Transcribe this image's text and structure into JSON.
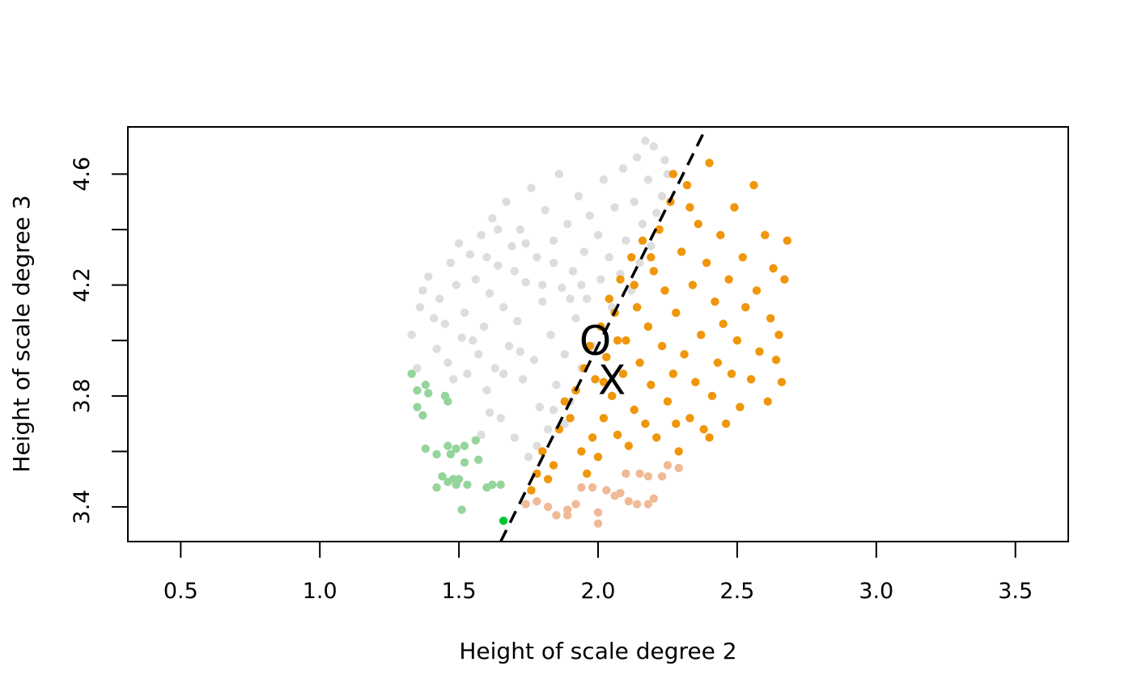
{
  "chart_data": {
    "type": "scatter",
    "xlabel": "Height of scale degree 2",
    "ylabel": "Height of scale degree 3",
    "xlim": [
      0.31,
      3.69
    ],
    "ylim": [
      3.275,
      4.77
    ],
    "xticks": [
      "0.5",
      "1.0",
      "1.5",
      "2.0",
      "2.5",
      "3.0",
      "3.5"
    ],
    "yticks": [
      "3.4",
      "3.8",
      "4.2",
      "4.6"
    ],
    "grid": false,
    "legend": "none",
    "dashed_line": {
      "x": [
        1.65,
        2.38
      ],
      "y": [
        3.275,
        4.75
      ]
    },
    "markers": [
      {
        "label": "O",
        "x": 1.99,
        "y": 4.0
      },
      {
        "label": "X",
        "x": 2.05,
        "y": 3.86
      }
    ],
    "series": [
      {
        "color": "#dddddd",
        "points": [
          [
            1.33,
            4.02
          ],
          [
            1.36,
            4.12
          ],
          [
            1.37,
            4.18
          ],
          [
            1.39,
            4.23
          ],
          [
            1.42,
            3.97
          ],
          [
            1.43,
            4.15
          ],
          [
            1.45,
            4.06
          ],
          [
            1.46,
            3.92
          ],
          [
            1.47,
            4.28
          ],
          [
            1.49,
            4.2
          ],
          [
            1.51,
            4.01
          ],
          [
            1.52,
            4.1
          ],
          [
            1.53,
            3.88
          ],
          [
            1.54,
            4.31
          ],
          [
            1.56,
            4.22
          ],
          [
            1.57,
            3.95
          ],
          [
            1.58,
            4.38
          ],
          [
            1.59,
            4.05
          ],
          [
            1.6,
            3.82
          ],
          [
            1.61,
            4.17
          ],
          [
            1.62,
            4.44
          ],
          [
            1.63,
            3.9
          ],
          [
            1.64,
            4.27
          ],
          [
            1.65,
            3.72
          ],
          [
            1.66,
            4.12
          ],
          [
            1.67,
            4.5
          ],
          [
            1.68,
            3.98
          ],
          [
            1.69,
            4.34
          ],
          [
            1.7,
            3.65
          ],
          [
            1.71,
            4.07
          ],
          [
            1.72,
            4.4
          ],
          [
            1.73,
            3.86
          ],
          [
            1.74,
            4.21
          ],
          [
            1.75,
            3.58
          ],
          [
            1.76,
            4.55
          ],
          [
            1.77,
            3.93
          ],
          [
            1.78,
            4.3
          ],
          [
            1.79,
            3.76
          ],
          [
            1.8,
            4.14
          ],
          [
            1.81,
            4.47
          ],
          [
            1.82,
            3.68
          ],
          [
            1.83,
            4.02
          ],
          [
            1.84,
            4.36
          ],
          [
            1.85,
            3.84
          ],
          [
            1.86,
            4.6
          ],
          [
            1.87,
            4.19
          ],
          [
            1.88,
            3.95
          ],
          [
            1.89,
            4.42
          ],
          [
            1.9,
            3.78
          ],
          [
            1.91,
            4.25
          ],
          [
            1.92,
            4.08
          ],
          [
            1.93,
            4.52
          ],
          [
            1.94,
            3.9
          ],
          [
            1.95,
            4.32
          ],
          [
            1.96,
            4.15
          ],
          [
            1.97,
            4.45
          ],
          [
            1.98,
            3.98
          ],
          [
            2.0,
            4.38
          ],
          [
            2.01,
            4.22
          ],
          [
            2.02,
            4.58
          ],
          [
            2.04,
            4.3
          ],
          [
            2.05,
            4.12
          ],
          [
            2.06,
            4.48
          ],
          [
            2.08,
            4.24
          ],
          [
            2.09,
            4.62
          ],
          [
            2.1,
            4.36
          ],
          [
            2.12,
            4.18
          ],
          [
            2.13,
            4.5
          ],
          [
            2.14,
            4.66
          ],
          [
            2.15,
            4.28
          ],
          [
            2.16,
            4.42
          ],
          [
            2.17,
            4.72
          ],
          [
            2.18,
            4.58
          ],
          [
            2.19,
            4.34
          ],
          [
            2.2,
            4.7
          ],
          [
            2.21,
            4.46
          ],
          [
            2.23,
            4.52
          ],
          [
            2.24,
            4.65
          ],
          [
            2.25,
            4.6
          ],
          [
            1.35,
            3.9
          ],
          [
            1.41,
            4.08
          ],
          [
            1.48,
            3.86
          ],
          [
            1.55,
            4.0
          ],
          [
            1.61,
            3.74
          ],
          [
            1.66,
            3.88
          ],
          [
            1.72,
            3.96
          ],
          [
            1.78,
            3.62
          ],
          [
            1.84,
            3.75
          ],
          [
            1.88,
            3.7
          ],
          [
            1.92,
            3.82
          ],
          [
            1.5,
            4.35
          ],
          [
            1.6,
            4.3
          ],
          [
            1.7,
            4.25
          ],
          [
            1.8,
            4.2
          ],
          [
            1.9,
            4.15
          ],
          [
            1.64,
            4.4
          ],
          [
            1.74,
            4.35
          ],
          [
            1.84,
            4.28
          ],
          [
            1.94,
            4.2
          ],
          [
            1.58,
            3.66
          ]
        ]
      },
      {
        "color": "#f0960a",
        "points": [
          [
            1.76,
            3.46
          ],
          [
            1.78,
            3.52
          ],
          [
            1.8,
            3.6
          ],
          [
            1.82,
            3.5
          ],
          [
            1.84,
            3.55
          ],
          [
            1.86,
            3.68
          ],
          [
            1.88,
            3.78
          ],
          [
            1.9,
            3.72
          ],
          [
            1.92,
            3.82
          ],
          [
            1.94,
            3.6
          ],
          [
            1.95,
            3.9
          ],
          [
            1.96,
            3.52
          ],
          [
            1.97,
            3.98
          ],
          [
            1.98,
            3.65
          ],
          [
            1.99,
            3.86
          ],
          [
            2.0,
            3.58
          ],
          [
            2.01,
            4.05
          ],
          [
            2.02,
            3.72
          ],
          [
            2.03,
            3.94
          ],
          [
            2.04,
            4.15
          ],
          [
            2.05,
            3.8
          ],
          [
            2.06,
            4.1
          ],
          [
            2.07,
            3.66
          ],
          [
            2.08,
            4.22
          ],
          [
            2.09,
            3.88
          ],
          [
            2.1,
            4.0
          ],
          [
            2.11,
            3.62
          ],
          [
            2.12,
            4.3
          ],
          [
            2.13,
            3.75
          ],
          [
            2.14,
            4.12
          ],
          [
            2.15,
            3.92
          ],
          [
            2.16,
            4.36
          ],
          [
            2.17,
            3.7
          ],
          [
            2.18,
            4.05
          ],
          [
            2.19,
            3.84
          ],
          [
            2.2,
            4.25
          ],
          [
            2.21,
            3.65
          ],
          [
            2.22,
            4.4
          ],
          [
            2.23,
            3.98
          ],
          [
            2.24,
            4.18
          ],
          [
            2.25,
            3.78
          ],
          [
            2.26,
            4.5
          ],
          [
            2.27,
            3.88
          ],
          [
            2.28,
            4.1
          ],
          [
            2.29,
            3.6
          ],
          [
            2.3,
            4.32
          ],
          [
            2.31,
            3.95
          ],
          [
            2.32,
            4.56
          ],
          [
            2.33,
            3.72
          ],
          [
            2.34,
            4.2
          ],
          [
            2.35,
            3.85
          ],
          [
            2.36,
            4.42
          ],
          [
            2.37,
            4.02
          ],
          [
            2.38,
            3.68
          ],
          [
            2.39,
            4.28
          ],
          [
            2.4,
            4.64
          ],
          [
            2.41,
            3.8
          ],
          [
            2.42,
            4.14
          ],
          [
            2.43,
            3.92
          ],
          [
            2.44,
            4.38
          ],
          [
            2.45,
            4.06
          ],
          [
            2.46,
            3.7
          ],
          [
            2.47,
            4.22
          ],
          [
            2.48,
            3.88
          ],
          [
            2.49,
            4.48
          ],
          [
            2.5,
            4.0
          ],
          [
            2.51,
            3.76
          ],
          [
            2.52,
            4.3
          ],
          [
            2.53,
            4.12
          ],
          [
            2.55,
            3.86
          ],
          [
            2.56,
            4.56
          ],
          [
            2.57,
            4.18
          ],
          [
            2.58,
            3.96
          ],
          [
            2.6,
            4.38
          ],
          [
            2.61,
            3.78
          ],
          [
            2.62,
            4.08
          ],
          [
            2.63,
            4.26
          ],
          [
            2.64,
            3.93
          ],
          [
            2.65,
            4.02
          ],
          [
            2.66,
            3.85
          ],
          [
            2.67,
            4.22
          ],
          [
            2.68,
            4.36
          ],
          [
            2.27,
            4.6
          ],
          [
            2.33,
            4.48
          ],
          [
            2.19,
            4.3
          ],
          [
            2.13,
            4.2
          ],
          [
            2.07,
            4.0
          ],
          [
            2.02,
            3.85
          ],
          [
            2.28,
            3.7
          ],
          [
            2.4,
            3.65
          ]
        ]
      },
      {
        "color": "#f0ba96",
        "points": [
          [
            1.74,
            3.41
          ],
          [
            1.78,
            3.42
          ],
          [
            1.82,
            3.4
          ],
          [
            1.85,
            3.37
          ],
          [
            1.89,
            3.39
          ],
          [
            1.92,
            3.41
          ],
          [
            1.94,
            3.47
          ],
          [
            1.98,
            3.47
          ],
          [
            2.0,
            3.38
          ],
          [
            2.0,
            3.34
          ],
          [
            2.03,
            3.46
          ],
          [
            2.06,
            3.44
          ],
          [
            2.08,
            3.45
          ],
          [
            2.1,
            3.52
          ],
          [
            2.11,
            3.42
          ],
          [
            2.14,
            3.41
          ],
          [
            2.15,
            3.52
          ],
          [
            2.18,
            3.51
          ],
          [
            2.2,
            3.43
          ],
          [
            2.23,
            3.51
          ],
          [
            2.25,
            3.55
          ],
          [
            2.29,
            3.54
          ],
          [
            1.89,
            3.37
          ],
          [
            2.18,
            3.41
          ]
        ]
      },
      {
        "color": "#95d59c",
        "points": [
          [
            1.33,
            3.88
          ],
          [
            1.35,
            3.82
          ],
          [
            1.35,
            3.76
          ],
          [
            1.37,
            3.73
          ],
          [
            1.38,
            3.61
          ],
          [
            1.38,
            3.84
          ],
          [
            1.39,
            3.81
          ],
          [
            1.42,
            3.59
          ],
          [
            1.42,
            3.47
          ],
          [
            1.44,
            3.51
          ],
          [
            1.45,
            3.8
          ],
          [
            1.46,
            3.78
          ],
          [
            1.46,
            3.62
          ],
          [
            1.46,
            3.49
          ],
          [
            1.47,
            3.59
          ],
          [
            1.48,
            3.5
          ],
          [
            1.49,
            3.61
          ],
          [
            1.5,
            3.5
          ],
          [
            1.51,
            3.39
          ],
          [
            1.52,
            3.62
          ],
          [
            1.52,
            3.56
          ],
          [
            1.53,
            3.48
          ],
          [
            1.56,
            3.64
          ],
          [
            1.57,
            3.57
          ],
          [
            1.6,
            3.47
          ],
          [
            1.62,
            3.48
          ],
          [
            1.65,
            3.48
          ],
          [
            1.49,
            3.48
          ]
        ]
      },
      {
        "color": "#00c832",
        "points": [
          [
            1.66,
            3.35
          ]
        ]
      }
    ]
  }
}
